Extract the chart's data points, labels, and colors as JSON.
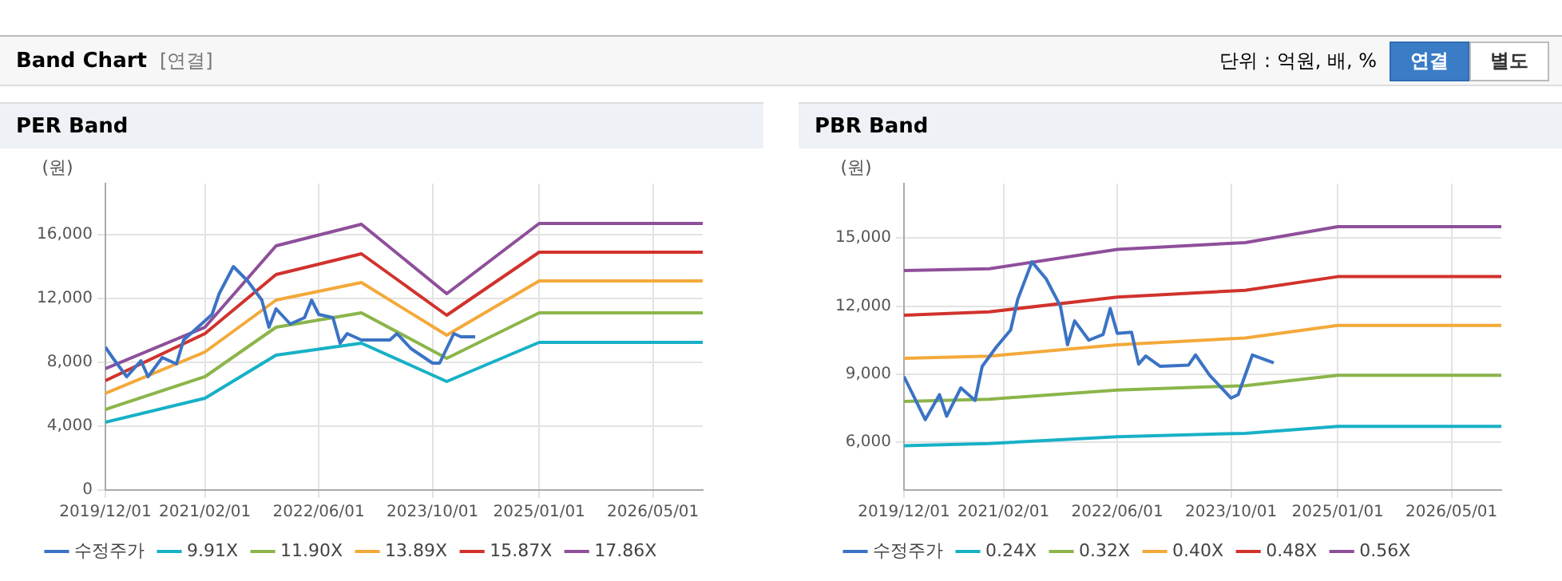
{
  "chart_data": [
    {
      "type": "other",
      "title": "Band Chart",
      "annotations": [
        "[연결]",
        "단위 : 억원, 배, %",
        "연결",
        "별도"
      ]
    },
    {
      "type": "line",
      "title": "PER Band",
      "ylabel": "(원)",
      "xlim": [
        "2019-12-01",
        "2026-12-01"
      ],
      "xticks": [
        {
          "value": "2019-12-01",
          "label": "2019/12/01"
        },
        {
          "value": "2021-02-01",
          "label": "2021/02/01"
        },
        {
          "value": "2022-06-01",
          "label": "2022/06/01"
        },
        {
          "value": "2023-10-01",
          "label": "2023/10/01"
        },
        {
          "value": "2025-01-01",
          "label": "2025/01/01"
        },
        {
          "value": "2026-05-01",
          "label": "2026/05/01"
        }
      ],
      "ylim": [
        0,
        19200
      ],
      "yticks": [
        0,
        {
          "value": 4000,
          "label": "4,000"
        },
        {
          "value": 8000,
          "label": "8,000"
        },
        {
          "value": 12000,
          "label": "12,000"
        },
        {
          "value": 16000,
          "label": "16,000"
        }
      ],
      "grid": true,
      "legend": "bottom",
      "marker": "none",
      "line_style": "solid",
      "series": [
        {
          "name": "수정주가",
          "color": "#3b73c4",
          "x": [
            "2019-12",
            "2020-01",
            "2020-03",
            "2020-05",
            "2020-06",
            "2020-08",
            "2020-10",
            "2020-11",
            "2021-01",
            "2021-03",
            "2021-04",
            "2021-06",
            "2021-08",
            "2021-10",
            "2021-11",
            "2021-12",
            "2022-02",
            "2022-04",
            "2022-05",
            "2022-06",
            "2022-08",
            "2022-09",
            "2022-10",
            "2022-12",
            "2023-04",
            "2023-05",
            "2023-07",
            "2023-10",
            "2023-11",
            "2024-01",
            "2024-02",
            "2024-04"
          ],
          "values": [
            8950,
            8300,
            7100,
            8100,
            7100,
            8300,
            7900,
            9400,
            10200,
            11000,
            12300,
            14000,
            13100,
            11900,
            10200,
            11350,
            10400,
            10800,
            11900,
            11000,
            10800,
            9200,
            9800,
            9400,
            9400,
            9800,
            8850,
            7950,
            7950,
            9800,
            9600,
            9600
          ]
        },
        {
          "name": "9.91X",
          "color": "#17b1c6",
          "x": [
            "2019-12",
            "2021-02",
            "2021-12",
            "2022-12",
            "2023-12",
            "2025-01",
            "2026-12"
          ],
          "values": [
            4250,
            5750,
            8450,
            9200,
            6800,
            9250,
            9250
          ]
        },
        {
          "name": "11.90X",
          "color": "#8bb54a",
          "x": [
            "2019-12",
            "2021-02",
            "2021-12",
            "2022-12",
            "2023-12",
            "2025-01",
            "2026-12"
          ],
          "values": [
            5050,
            7100,
            10200,
            11100,
            8250,
            11100,
            11100
          ]
        },
        {
          "name": "13.89X",
          "color": "#f3a93a",
          "x": [
            "2019-12",
            "2021-02",
            "2021-12",
            "2022-12",
            "2023-12",
            "2025-01",
            "2026-12"
          ],
          "values": [
            6050,
            8650,
            11900,
            13000,
            9700,
            13100,
            13100
          ]
        },
        {
          "name": "15.87X",
          "color": "#d1322d",
          "x": [
            "2019-12",
            "2021-02",
            "2021-12",
            "2022-12",
            "2023-12",
            "2025-01",
            "2026-12"
          ],
          "values": [
            6850,
            9800,
            13500,
            14800,
            10950,
            14900,
            14900
          ]
        },
        {
          "name": "17.86X",
          "color": "#8e4f9a",
          "x": [
            "2019-12",
            "2021-02",
            "2021-12",
            "2022-12",
            "2023-12",
            "2025-01",
            "2026-12"
          ],
          "values": [
            7600,
            10200,
            15300,
            16650,
            12300,
            16700,
            16700
          ]
        }
      ]
    },
    {
      "type": "line",
      "title": "PBR Band",
      "ylabel": "(원)",
      "xlim": [
        "2019-12-01",
        "2026-12-01"
      ],
      "xticks": [
        {
          "value": "2019-12-01",
          "label": "2019/12/01"
        },
        {
          "value": "2021-02-01",
          "label": "2021/02/01"
        },
        {
          "value": "2022-06-01",
          "label": "2022/06/01"
        },
        {
          "value": "2023-10-01",
          "label": "2023/10/01"
        },
        {
          "value": "2025-01-01",
          "label": "2025/01/01"
        },
        {
          "value": "2026-05-01",
          "label": "2026/05/01"
        }
      ],
      "ylim": [
        3900,
        17400
      ],
      "yticks": [
        {
          "value": 6000,
          "label": "6,000"
        },
        {
          "value": 9000,
          "label": "9,000"
        },
        {
          "value": 12000,
          "label": "12,000"
        },
        {
          "value": 15000,
          "label": "15,000"
        }
      ],
      "grid": true,
      "legend": "bottom",
      "marker": "none",
      "line_style": "solid",
      "series": [
        {
          "name": "수정주가",
          "color": "#3b73c4",
          "x": [
            "2019-12",
            "2020-03",
            "2020-05",
            "2020-06",
            "2020-08",
            "2020-10",
            "2020-11",
            "2021-01",
            "2021-03",
            "2021-04",
            "2021-06",
            "2021-08",
            "2021-10",
            "2021-11",
            "2021-12",
            "2022-02",
            "2022-04",
            "2022-05",
            "2022-06",
            "2022-08",
            "2022-09",
            "2022-10",
            "2022-12",
            "2023-04",
            "2023-05",
            "2023-07",
            "2023-10",
            "2023-11",
            "2024-01",
            "2024-04"
          ],
          "values": [
            8900,
            7000,
            8100,
            7150,
            8400,
            7850,
            9350,
            10200,
            10950,
            12300,
            13950,
            13200,
            12000,
            10300,
            11350,
            10500,
            10750,
            11900,
            10800,
            10850,
            9450,
            9800,
            9350,
            9400,
            9850,
            8950,
            7950,
            8100,
            9850,
            9500
          ]
        },
        {
          "name": "0.24X",
          "color": "#17b1c6",
          "x": [
            "2019-12",
            "2020-12",
            "2022-06",
            "2023-12",
            "2025-01",
            "2026-12"
          ],
          "values": [
            5850,
            5950,
            6250,
            6400,
            6700,
            6700
          ]
        },
        {
          "name": "0.32X",
          "color": "#8bb54a",
          "x": [
            "2019-12",
            "2020-12",
            "2022-06",
            "2023-12",
            "2025-01",
            "2026-12"
          ],
          "values": [
            7800,
            7900,
            8300,
            8500,
            8950,
            8950
          ]
        },
        {
          "name": "0.40X",
          "color": "#f3a93a",
          "x": [
            "2019-12",
            "2020-12",
            "2022-06",
            "2023-12",
            "2025-01",
            "2026-12"
          ],
          "values": [
            9700,
            9800,
            10300,
            10600,
            11150,
            11150
          ]
        },
        {
          "name": "0.48X",
          "color": "#d1322d",
          "x": [
            "2019-12",
            "2020-12",
            "2022-06",
            "2023-12",
            "2025-01",
            "2026-12"
          ],
          "values": [
            11600,
            11750,
            12400,
            12700,
            13300,
            13300
          ]
        },
        {
          "name": "0.56X",
          "color": "#8e4f9a",
          "x": [
            "2019-12",
            "2020-12",
            "2022-06",
            "2023-12",
            "2025-01",
            "2026-12"
          ],
          "values": [
            13570,
            13650,
            14500,
            14800,
            15500,
            15500
          ]
        }
      ]
    }
  ]
}
